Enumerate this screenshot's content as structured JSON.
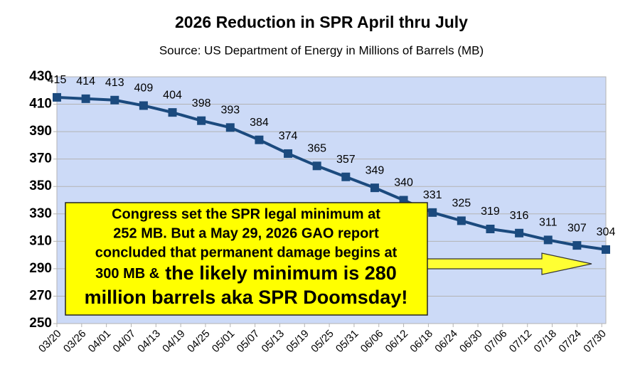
{
  "chart_data": {
    "type": "line",
    "title": "2026 Reduction in SPR April thru July",
    "subtitle": "Source: US Department of Energy in Millions of Barrels (MB)",
    "x": [
      0,
      7,
      14,
      21,
      28,
      35,
      42,
      49,
      56,
      63,
      70,
      77,
      84,
      91,
      98,
      105,
      112,
      119,
      126,
      133
    ],
    "series": [
      {
        "name": "SPR",
        "color": "#1b4a7e",
        "values": [
          415,
          414,
          413,
          409,
          404,
          398,
          393,
          384,
          374,
          365,
          357,
          349,
          340,
          331,
          325,
          319,
          316,
          311,
          307,
          304
        ]
      }
    ],
    "xlim": [
      0,
      133
    ],
    "xticks": [
      {
        "value": 0,
        "label": "03/20"
      },
      {
        "value": 6,
        "label": "03/26"
      },
      {
        "value": 12,
        "label": "04/01"
      },
      {
        "value": 18,
        "label": "04/07"
      },
      {
        "value": 24,
        "label": "04/13"
      },
      {
        "value": 30,
        "label": "04/19"
      },
      {
        "value": 36,
        "label": "04/25"
      },
      {
        "value": 42,
        "label": "05/01"
      },
      {
        "value": 48,
        "label": "05/07"
      },
      {
        "value": 54,
        "label": "05/13"
      },
      {
        "value": 60,
        "label": "05/19"
      },
      {
        "value": 66,
        "label": "05/25"
      },
      {
        "value": 72,
        "label": "05/31"
      },
      {
        "value": 78,
        "label": "06/06"
      },
      {
        "value": 84,
        "label": "06/12"
      },
      {
        "value": 90,
        "label": "06/18"
      },
      {
        "value": 96,
        "label": "06/24"
      },
      {
        "value": 102,
        "label": "06/30"
      },
      {
        "value": 108,
        "label": "07/06"
      },
      {
        "value": 114,
        "label": "07/12"
      },
      {
        "value": 120,
        "label": "07/18"
      },
      {
        "value": 126,
        "label": "07/24"
      },
      {
        "value": 132,
        "label": "07/30"
      }
    ],
    "ylim": [
      250,
      430
    ],
    "yticks": [
      250,
      270,
      290,
      310,
      330,
      350,
      370,
      390,
      410,
      430
    ],
    "grid": true,
    "plot_background": "#ccdaf7",
    "annotation": {
      "lines": [
        "Congress set the SPR legal minimum at",
        "252 MB. But a May 29, 2026 GAO report",
        "concluded that permanent damage begins at"
      ],
      "line4_small": "300 MB &",
      "line4_large": "the likely minimum is 280",
      "line5": "million barrels aka SPR Doomsday!"
    }
  }
}
